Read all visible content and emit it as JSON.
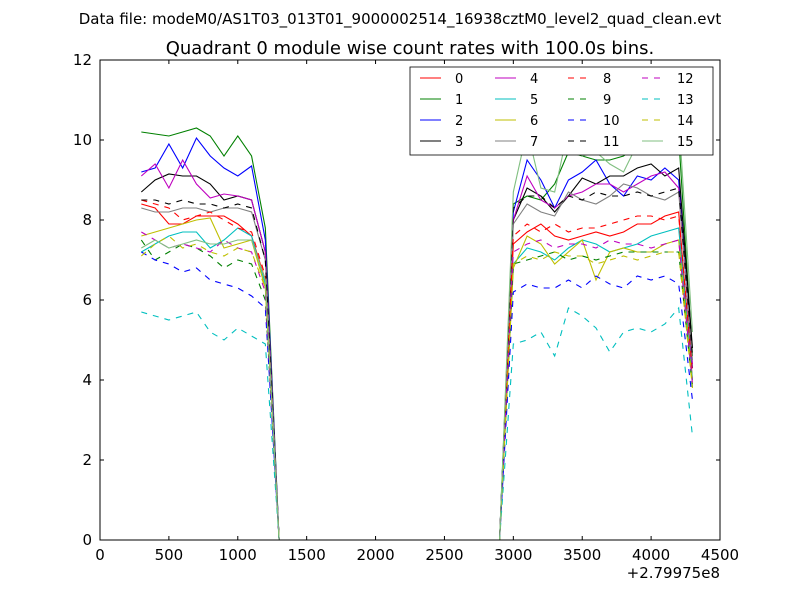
{
  "figure": {
    "suptitle": "Data file: modeM0/AS1T03_013T01_9000002514_16938cztM0_level2_quad_clean.evt"
  },
  "chart_data": {
    "type": "line",
    "title": "Quadrant 0 module wise count rates with 100.0s bins.",
    "xlabel": "",
    "ylabel": "",
    "x_offset_label": "+2.79975e8",
    "xlim": [
      0,
      4500
    ],
    "ylim": [
      0,
      12
    ],
    "xticks": [
      0,
      500,
      1000,
      1500,
      2000,
      2500,
      3000,
      3500,
      4000,
      4500
    ],
    "yticks": [
      0,
      2,
      4,
      6,
      8,
      10,
      12
    ],
    "grid": false,
    "legend_position": "top-right",
    "legend_columns": 4,
    "x": [
      300,
      400,
      500,
      600,
      700,
      800,
      900,
      1000,
      1100,
      1200,
      1300,
      1400,
      1500,
      1600,
      1700,
      1800,
      1900,
      2000,
      2100,
      2200,
      2300,
      2400,
      2500,
      2600,
      2700,
      2800,
      2900,
      3000,
      3100,
      3200,
      3300,
      3400,
      3500,
      3600,
      3700,
      3800,
      3900,
      4000,
      4100,
      4200,
      4300
    ],
    "series": [
      {
        "name": "0",
        "color": "#ff0000",
        "dash": "solid",
        "values": [
          8.4,
          8.3,
          7.9,
          7.9,
          8.1,
          8.1,
          8.1,
          7.9,
          7.6,
          6.5,
          0,
          0,
          0,
          0,
          0,
          0,
          0,
          0,
          0,
          0,
          0,
          0,
          0,
          0,
          0,
          0,
          0,
          7.4,
          7.7,
          7.9,
          7.6,
          7.5,
          7.6,
          7.7,
          7.6,
          7.7,
          7.9,
          7.9,
          8.1,
          8.2,
          4.0
        ]
      },
      {
        "name": "1",
        "color": "#008000",
        "dash": "solid",
        "values": [
          10.2,
          10.15,
          10.1,
          10.2,
          10.3,
          10.1,
          9.6,
          10.1,
          9.6,
          7.8,
          0,
          0,
          0,
          0,
          0,
          0,
          0,
          0,
          0,
          0,
          0,
          0,
          0,
          0,
          0,
          0,
          0,
          8.4,
          8.6,
          8.5,
          8.9,
          9.7,
          9.6,
          9.5,
          9.5,
          9.6,
          9.9,
          9.8,
          9.8,
          10.1,
          4.6
        ]
      },
      {
        "name": "2",
        "color": "#0000ff",
        "dash": "solid",
        "values": [
          9.2,
          9.3,
          9.9,
          9.3,
          10.05,
          9.6,
          9.3,
          9.1,
          9.35,
          7.5,
          0,
          0,
          0,
          0,
          0,
          0,
          0,
          0,
          0,
          0,
          0,
          0,
          0,
          0,
          0,
          0,
          0,
          8.2,
          9.5,
          9.0,
          8.3,
          9.0,
          9.2,
          9.5,
          8.9,
          8.6,
          9.1,
          9.0,
          9.3,
          9.0,
          4.3
        ]
      },
      {
        "name": "3",
        "color": "#000000",
        "dash": "solid",
        "values": [
          8.7,
          9.0,
          9.15,
          9.1,
          9.1,
          8.9,
          8.5,
          8.6,
          8.5,
          7.2,
          0,
          0,
          0,
          0,
          0,
          0,
          0,
          0,
          0,
          0,
          0,
          0,
          0,
          0,
          0,
          0,
          0,
          8.0,
          8.8,
          8.6,
          8.2,
          8.6,
          9.05,
          8.9,
          9.1,
          9.1,
          9.3,
          9.4,
          9.1,
          9.3,
          4.8
        ]
      },
      {
        "name": "4",
        "color": "#bf00bf",
        "dash": "solid",
        "values": [
          9.1,
          9.4,
          8.8,
          9.5,
          8.9,
          8.55,
          8.65,
          8.6,
          8.5,
          7.2,
          0,
          0,
          0,
          0,
          0,
          0,
          0,
          0,
          0,
          0,
          0,
          0,
          0,
          0,
          0,
          0,
          0,
          8.0,
          9.1,
          8.5,
          8.3,
          8.6,
          8.7,
          8.9,
          8.9,
          8.7,
          8.9,
          9.1,
          9.2,
          8.8,
          4.4
        ]
      },
      {
        "name": "5",
        "color": "#00bfbf",
        "dash": "solid",
        "values": [
          7.2,
          7.4,
          7.6,
          7.7,
          7.7,
          7.3,
          7.5,
          7.8,
          7.6,
          6.4,
          0,
          0,
          0,
          0,
          0,
          0,
          0,
          0,
          0,
          0,
          0,
          0,
          0,
          0,
          0,
          0,
          0,
          6.9,
          7.3,
          7.2,
          7.0,
          7.3,
          7.5,
          7.4,
          7.2,
          7.3,
          7.4,
          7.6,
          7.7,
          7.8,
          4.0
        ]
      },
      {
        "name": "6",
        "color": "#bfbf00",
        "dash": "solid",
        "values": [
          7.6,
          7.7,
          7.8,
          7.9,
          8.0,
          8.05,
          7.3,
          7.4,
          7.5,
          6.3,
          0,
          0,
          0,
          0,
          0,
          0,
          0,
          0,
          0,
          0,
          0,
          0,
          0,
          0,
          0,
          0,
          0,
          6.8,
          7.6,
          7.4,
          6.9,
          7.2,
          7.5,
          6.5,
          7.2,
          7.3,
          7.2,
          7.2,
          7.4,
          7.5,
          3.9
        ]
      },
      {
        "name": "7",
        "color": "#808080",
        "dash": "solid",
        "values": [
          8.3,
          8.2,
          8.2,
          8.3,
          8.3,
          8.2,
          8.3,
          8.3,
          8.2,
          7.0,
          0,
          0,
          0,
          0,
          0,
          0,
          0,
          0,
          0,
          0,
          0,
          0,
          0,
          0,
          0,
          0,
          0,
          7.9,
          8.4,
          8.2,
          8.1,
          8.7,
          8.5,
          8.4,
          8.6,
          8.9,
          8.8,
          8.6,
          8.5,
          8.7,
          4.5
        ]
      },
      {
        "name": "8",
        "color": "#ff0000",
        "dash": "dashed",
        "values": [
          8.5,
          8.4,
          8.3,
          8.0,
          8.1,
          8.2,
          8.0,
          7.8,
          7.7,
          6.6,
          0,
          0,
          0,
          0,
          0,
          0,
          0,
          0,
          0,
          0,
          0,
          0,
          0,
          0,
          0,
          0,
          0,
          7.6,
          7.9,
          7.7,
          7.9,
          7.7,
          7.8,
          7.8,
          7.9,
          8.0,
          8.1,
          8.1,
          8.0,
          8.1,
          4.2
        ]
      },
      {
        "name": "9",
        "color": "#008000",
        "dash": "dashed",
        "values": [
          7.5,
          7.0,
          7.2,
          7.4,
          7.3,
          7.1,
          6.8,
          7.0,
          6.9,
          6.0,
          0,
          0,
          0,
          0,
          0,
          0,
          0,
          0,
          0,
          0,
          0,
          0,
          0,
          0,
          0,
          0,
          0,
          6.9,
          7.0,
          7.1,
          7.2,
          7.0,
          7.1,
          7.0,
          7.1,
          7.2,
          7.2,
          7.2,
          7.2,
          7.2,
          3.8
        ]
      },
      {
        "name": "10",
        "color": "#0000ff",
        "dash": "dashed",
        "values": [
          7.2,
          7.0,
          6.9,
          6.7,
          6.8,
          6.5,
          6.4,
          6.3,
          6.1,
          5.8,
          0,
          0,
          0,
          0,
          0,
          0,
          0,
          0,
          0,
          0,
          0,
          0,
          0,
          0,
          0,
          0,
          0,
          6.2,
          6.4,
          6.3,
          6.3,
          6.5,
          6.3,
          6.6,
          6.4,
          6.3,
          6.6,
          6.5,
          6.6,
          6.4,
          3.5
        ]
      },
      {
        "name": "11",
        "color": "#000000",
        "dash": "dashed",
        "values": [
          8.5,
          8.5,
          8.4,
          8.5,
          8.4,
          8.4,
          8.3,
          8.4,
          8.3,
          7.0,
          0,
          0,
          0,
          0,
          0,
          0,
          0,
          0,
          0,
          0,
          0,
          0,
          0,
          0,
          0,
          0,
          0,
          8.3,
          8.6,
          8.6,
          8.3,
          8.6,
          8.5,
          8.7,
          8.6,
          8.6,
          8.7,
          8.6,
          8.7,
          8.8,
          4.6
        ]
      },
      {
        "name": "12",
        "color": "#bf00bf",
        "dash": "dashed",
        "values": [
          7.7,
          7.5,
          7.3,
          7.4,
          7.3,
          7.2,
          7.5,
          7.3,
          7.2,
          6.2,
          0,
          0,
          0,
          0,
          0,
          0,
          0,
          0,
          0,
          0,
          0,
          0,
          0,
          0,
          0,
          0,
          0,
          7.2,
          7.4,
          7.5,
          7.3,
          7.4,
          7.4,
          7.3,
          7.5,
          7.4,
          7.4,
          7.3,
          7.4,
          7.5,
          3.9
        ]
      },
      {
        "name": "13",
        "color": "#00bfbf",
        "dash": "dashed",
        "values": [
          5.7,
          5.6,
          5.5,
          5.6,
          5.7,
          5.2,
          5.0,
          5.3,
          5.1,
          4.9,
          0,
          0,
          0,
          0,
          0,
          0,
          0,
          0,
          0,
          0,
          0,
          0,
          0,
          0,
          0,
          0,
          0,
          4.9,
          5.0,
          5.2,
          4.6,
          5.8,
          5.6,
          5.3,
          4.7,
          5.2,
          5.3,
          5.2,
          5.4,
          5.8,
          2.6
        ]
      },
      {
        "name": "14",
        "color": "#bfbf00",
        "dash": "dashed",
        "values": [
          7.1,
          7.4,
          7.6,
          7.3,
          7.4,
          7.2,
          7.1,
          7.3,
          7.2,
          6.3,
          0,
          0,
          0,
          0,
          0,
          0,
          0,
          0,
          0,
          0,
          0,
          0,
          0,
          0,
          0,
          0,
          0,
          6.9,
          7.1,
          7.0,
          7.2,
          7.1,
          7.1,
          6.9,
          7.0,
          7.1,
          7.0,
          7.1,
          7.2,
          7.2,
          3.8
        ]
      },
      {
        "name": "15",
        "color": "#80bf80",
        "dash": "solid",
        "values": [
          7.3,
          7.5,
          7.3,
          7.4,
          7.5,
          7.4,
          7.4,
          7.5,
          7.5,
          6.5,
          0,
          0,
          0,
          0,
          0,
          0,
          0,
          0,
          0,
          0,
          0,
          0,
          0,
          0,
          0,
          0,
          0,
          8.7,
          10.25,
          8.8,
          8.7,
          10.3,
          9.6,
          9.7,
          9.4,
          9.2,
          9.9,
          9.8,
          9.8,
          10.6,
          5.2
        ]
      }
    ]
  }
}
